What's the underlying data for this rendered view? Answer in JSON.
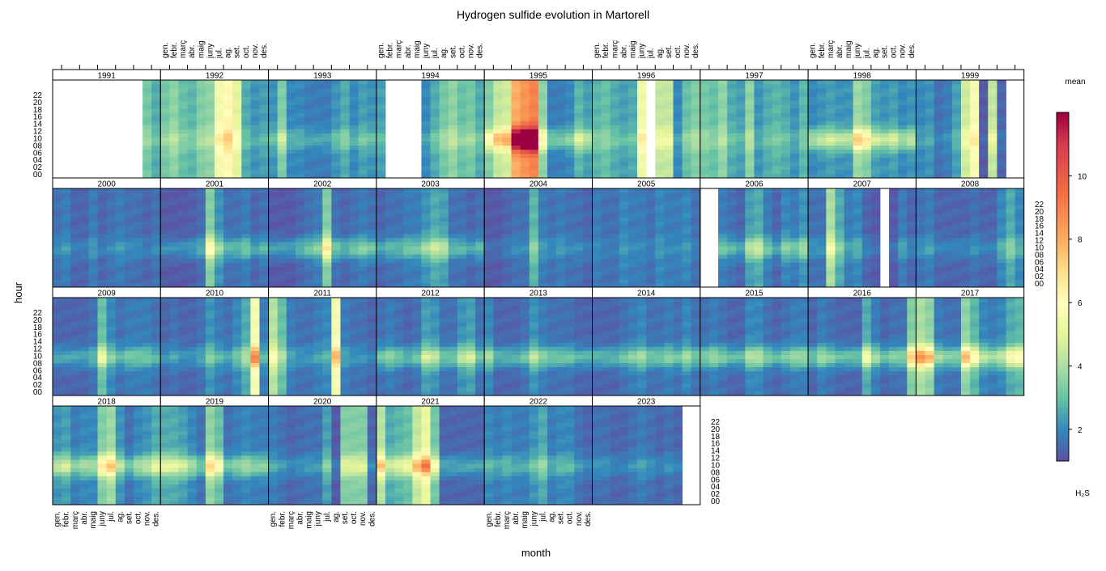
{
  "chart_data": {
    "type": "heatmap",
    "title": "Hydrogen sulfide evolution in Martorell",
    "xlabel": "month",
    "ylabel": "hour",
    "legend": {
      "title": "mean",
      "subtitle": "H2S",
      "placement": "right",
      "ticks": [
        2,
        4,
        6,
        8,
        10
      ],
      "range": [
        1,
        12
      ]
    },
    "months": [
      "gen.",
      "febr.",
      "març",
      "abr.",
      "maig",
      "juny",
      "jul.",
      "ag.",
      "set.",
      "oct.",
      "nov.",
      "des."
    ],
    "hour_ticks": [
      "00",
      "02",
      "04",
      "06",
      "08",
      "10",
      "12",
      "14",
      "16",
      "18",
      "20",
      "22"
    ],
    "panels": [
      {
        "year": "1991",
        "base": [
          null,
          null,
          null,
          null,
          null,
          null,
          null,
          null,
          null,
          null,
          3.2,
          2.6
        ],
        "peak": 0.5
      },
      {
        "year": "1992",
        "base": [
          3.2,
          3.6,
          3.0,
          2.8,
          3.4,
          3.6,
          5.5,
          6.2,
          5.0,
          2.6,
          2.2,
          2.4
        ],
        "peak": 0.5
      },
      {
        "year": "1993",
        "base": [
          2.2,
          3.4,
          2.0,
          2.0,
          1.8,
          1.8,
          1.8,
          2.2,
          2.6,
          2.0,
          2.4,
          2.2
        ],
        "peak": 1.0
      },
      {
        "year": "1994",
        "base": [
          2.4,
          null,
          null,
          null,
          null,
          2.0,
          2.6,
          3.2,
          3.6,
          3.0,
          3.2,
          2.6
        ],
        "peak": 0.6
      },
      {
        "year": "1995",
        "base": [
          3.4,
          4.4,
          4.6,
          8.0,
          8.6,
          9.0,
          3.6,
          1.8,
          1.8,
          2.0,
          2.8,
          2.4
        ],
        "peak": 2.0
      },
      {
        "year": "1996",
        "base": [
          2.8,
          3.0,
          2.6,
          2.4,
          2.6,
          5.4,
          null,
          4.4,
          4.4,
          2.0,
          3.0,
          3.4
        ],
        "peak": 0.6
      },
      {
        "year": "1997",
        "base": [
          3.2,
          3.0,
          3.6,
          2.6,
          2.4,
          3.6,
          2.2,
          2.6,
          2.8,
          2.6,
          2.2,
          2.8
        ],
        "peak": 0.5
      },
      {
        "year": "1998",
        "base": [
          2.0,
          2.2,
          2.4,
          2.2,
          2.2,
          3.8,
          3.4,
          2.4,
          2.2,
          2.4,
          2.0,
          2.2
        ],
        "peak": 2.5
      },
      {
        "year": "1999",
        "base": [
          2.0,
          2.2,
          1.6,
          1.8,
          2.4,
          4.6,
          5.6,
          1.2,
          4.4,
          1.4,
          null,
          null
        ],
        "peak": 0.5
      },
      {
        "year": "2000",
        "base": [
          1.6,
          1.8,
          1.4,
          1.4,
          1.8,
          1.4,
          1.6,
          1.8,
          1.6,
          1.6,
          1.4,
          1.6
        ],
        "peak": 0.8
      },
      {
        "year": "2001",
        "base": [
          1.2,
          1.2,
          1.2,
          1.3,
          1.5,
          3.4,
          2.2,
          1.6,
          1.6,
          1.8,
          1.4,
          1.6
        ],
        "peak": 2.0
      },
      {
        "year": "2002",
        "base": [
          1.2,
          1.2,
          1.2,
          1.4,
          1.6,
          1.8,
          3.4,
          1.6,
          1.4,
          1.6,
          1.8,
          1.6
        ],
        "peak": 2.5
      },
      {
        "year": "2003",
        "base": [
          1.4,
          1.6,
          1.6,
          1.8,
          1.8,
          2.2,
          2.6,
          2.4,
          1.6,
          1.6,
          1.4,
          1.6
        ],
        "peak": 2.0
      },
      {
        "year": "2004",
        "base": [
          1.2,
          1.2,
          1.4,
          1.6,
          1.6,
          2.8,
          1.8,
          1.6,
          1.8,
          1.6,
          1.6,
          1.4
        ],
        "peak": 0.8
      },
      {
        "year": "2005",
        "base": [
          1.8,
          1.6,
          1.6,
          2.0,
          1.8,
          1.8,
          1.6,
          2.0,
          1.8,
          1.8,
          2.0,
          1.6
        ],
        "peak": 0.4
      },
      {
        "year": "2006",
        "base": [
          null,
          null,
          1.8,
          1.6,
          1.4,
          2.4,
          2.6,
          1.8,
          1.4,
          2.0,
          1.8,
          2.2
        ],
        "peak": 2.0
      },
      {
        "year": "2007",
        "base": [
          1.6,
          1.6,
          4.0,
          2.6,
          1.8,
          2.0,
          1.4,
          1.2,
          null,
          1.2,
          1.8,
          1.4
        ],
        "peak": 1.0
      },
      {
        "year": "2008",
        "base": [
          1.6,
          1.8,
          1.4,
          1.4,
          1.4,
          1.4,
          1.6,
          1.4,
          1.4,
          2.0,
          2.6,
          2.0
        ],
        "peak": 1.0
      },
      {
        "year": "2009",
        "base": [
          1.4,
          1.4,
          1.4,
          1.4,
          1.6,
          3.0,
          2.0,
          1.6,
          1.8,
          1.8,
          1.8,
          1.6
        ],
        "peak": 2.0
      },
      {
        "year": "2010",
        "base": [
          1.4,
          1.6,
          1.4,
          1.4,
          1.6,
          2.2,
          1.8,
          1.6,
          2.0,
          2.6,
          5.6,
          1.8
        ],
        "peak": 1.5
      },
      {
        "year": "2011",
        "base": [
          4.2,
          3.0,
          1.8,
          1.6,
          1.6,
          1.8,
          2.0,
          5.6,
          1.8,
          1.6,
          1.6,
          1.4
        ],
        "peak": 1.0
      },
      {
        "year": "2012",
        "base": [
          1.6,
          1.8,
          1.6,
          1.4,
          1.6,
          2.4,
          2.2,
          1.6,
          1.6,
          2.2,
          2.4,
          1.6
        ],
        "peak": 2.5
      },
      {
        "year": "2013",
        "base": [
          2.0,
          1.4,
          1.4,
          1.4,
          1.6,
          2.2,
          1.8,
          1.6,
          1.6,
          1.6,
          1.4,
          1.4
        ],
        "peak": 2.5
      },
      {
        "year": "2014",
        "base": [
          1.4,
          1.4,
          1.4,
          1.6,
          1.8,
          2.0,
          1.6,
          1.6,
          1.8,
          1.6,
          2.0,
          1.6
        ],
        "peak": 2.5
      },
      {
        "year": "2015",
        "base": [
          1.6,
          1.8,
          1.6,
          1.4,
          1.4,
          2.0,
          2.0,
          1.6,
          1.4,
          1.6,
          1.8,
          1.8
        ],
        "peak": 2.8
      },
      {
        "year": "2016",
        "base": [
          1.4,
          1.8,
          1.6,
          1.4,
          1.4,
          1.4,
          2.6,
          1.8,
          1.4,
          1.6,
          1.6,
          3.4
        ],
        "peak": 3.0
      },
      {
        "year": "2017",
        "base": [
          4.0,
          3.6,
          1.8,
          1.6,
          1.6,
          3.6,
          2.8,
          2.0,
          1.8,
          2.0,
          2.6,
          2.8
        ],
        "peak": 3.0
      },
      {
        "year": "2018",
        "base": [
          2.2,
          2.4,
          1.8,
          2.0,
          2.0,
          3.4,
          3.8,
          2.2,
          1.6,
          2.0,
          2.2,
          2.6
        ],
        "peak": 2.5
      },
      {
        "year": "2019",
        "base": [
          2.6,
          2.6,
          2.4,
          2.0,
          1.6,
          3.6,
          3.0,
          1.6,
          1.8,
          2.0,
          1.8,
          1.8
        ],
        "peak": 2.5
      },
      {
        "year": "2020",
        "base": [
          1.8,
          1.6,
          1.4,
          1.5,
          1.6,
          1.6,
          2.4,
          1.2,
          3.4,
          3.4,
          3.4,
          1.4
        ],
        "peak": 1.2
      },
      {
        "year": "2021",
        "base": [
          4.2,
          2.6,
          2.8,
          3.0,
          4.4,
          5.2,
          3.2,
          1.4,
          1.4,
          1.4,
          1.4,
          1.4
        ],
        "peak": 2.0
      },
      {
        "year": "2022",
        "base": [
          2.0,
          1.8,
          2.0,
          1.8,
          1.8,
          2.2,
          2.6,
          1.8,
          2.0,
          2.0,
          1.6,
          1.4
        ],
        "peak": 1.2
      },
      {
        "year": "2023",
        "base": [
          1.6,
          1.6,
          1.4,
          1.4,
          1.6,
          1.8,
          1.6,
          1.4,
          1.6,
          1.4,
          null,
          null
        ],
        "peak": 1.0
      }
    ]
  }
}
